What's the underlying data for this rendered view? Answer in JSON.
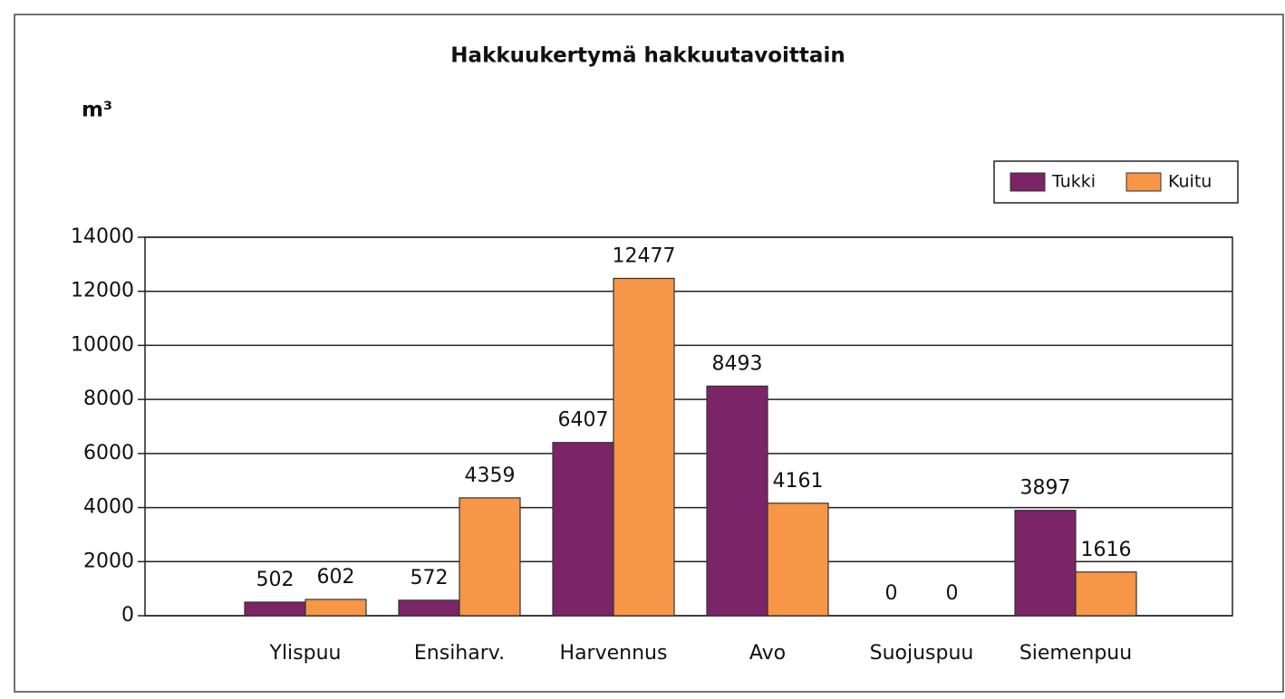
{
  "chart_data": {
    "type": "bar",
    "title": "Hakkuukertymä hakkuutavoittain",
    "y_label": "m³",
    "categories": [
      "Ylispuu",
      "Ensiharv.",
      "Harvennus",
      "Avo",
      "Suojuspuu",
      "Siemenpuu"
    ],
    "series": [
      {
        "name": "Tukki",
        "color": "#7b2468",
        "values": [
          502,
          572,
          6407,
          8493,
          0,
          3897
        ]
      },
      {
        "name": "Kuitu",
        "color": "#f79646",
        "values": [
          602,
          4359,
          12477,
          4161,
          0,
          1616
        ]
      }
    ],
    "ylim": [
      0,
      14000
    ],
    "yticks": [
      0,
      2000,
      4000,
      6000,
      8000,
      10000,
      12000,
      14000
    ],
    "grid": true,
    "legend": "top-right"
  }
}
